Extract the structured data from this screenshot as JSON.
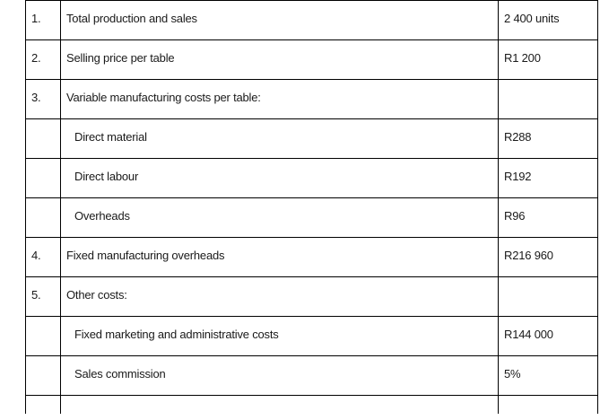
{
  "rows": [
    {
      "num": "1.",
      "desc": "Total production and sales",
      "value": "2 400 units"
    },
    {
      "num": "2.",
      "desc": "Selling price per table",
      "value": "R1 200"
    },
    {
      "num": "3.",
      "desc": "Variable manufacturing costs per table:",
      "value": ""
    },
    {
      "num": "",
      "desc": "Direct material",
      "value": "R288"
    },
    {
      "num": "",
      "desc": "Direct labour",
      "value": "R192"
    },
    {
      "num": "",
      "desc": "Overheads",
      "value": "R96"
    },
    {
      "num": "4.",
      "desc": "Fixed manufacturing overheads",
      "value": "R216 960"
    },
    {
      "num": "5.",
      "desc": "Other costs:",
      "value": ""
    },
    {
      "num": "",
      "desc": "Fixed marketing and administrative costs",
      "value": "R144 000"
    },
    {
      "num": "",
      "desc": "Sales commission",
      "value": "5%"
    }
  ]
}
